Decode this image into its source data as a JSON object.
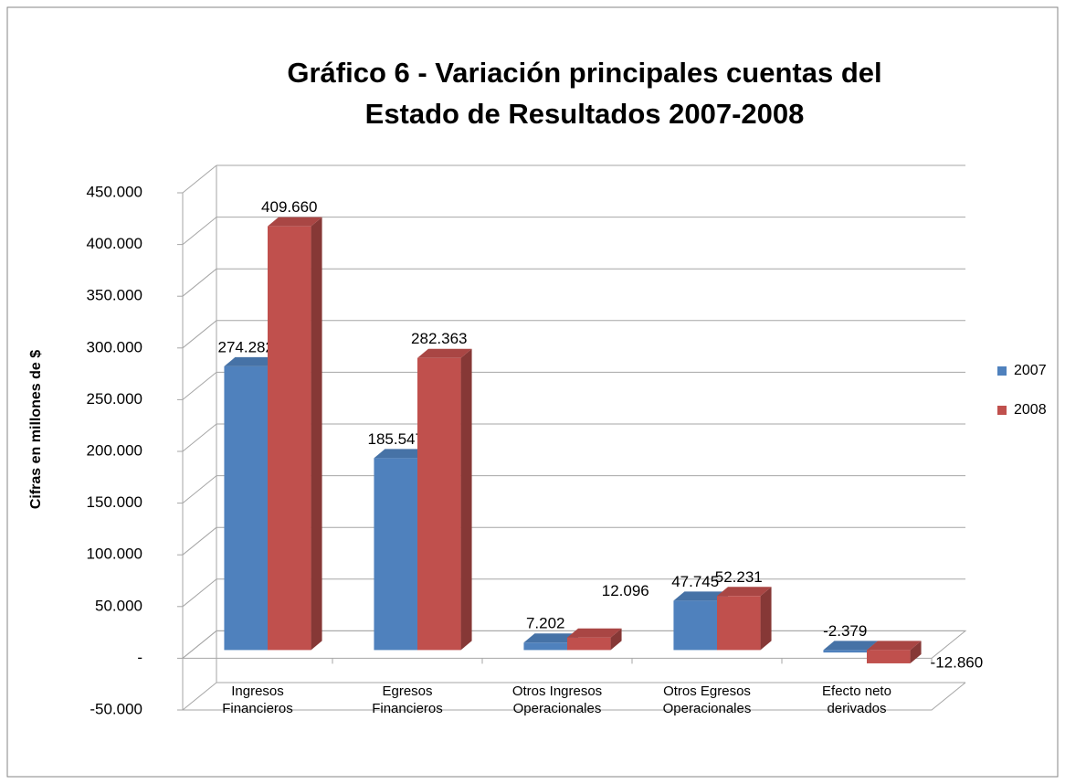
{
  "chart_data": {
    "type": "bar3d",
    "title": [
      "Gráfico 6 - Variación principales cuentas del",
      "Estado de Resultados 2007-2008"
    ],
    "y_label": "Cifras en millones de $",
    "categories": [
      [
        "Ingresos",
        "Financieros"
      ],
      [
        "Egresos",
        "Financieros"
      ],
      [
        "Otros Ingresos",
        "Operacionales"
      ],
      [
        "Otros Egresos",
        "Operacionales"
      ],
      [
        "Efecto neto",
        "derivados"
      ]
    ],
    "series": [
      {
        "name": "2007",
        "color": "#4f81bd",
        "values": [
          274282,
          185547,
          7202,
          47745,
          -2379
        ],
        "value_labels": [
          "274.282",
          "185.547",
          "7.202",
          "47.745",
          "-2.379"
        ]
      },
      {
        "name": "2008",
        "color": "#c0504d",
        "values": [
          409660,
          282363,
          12096,
          52231,
          -12860
        ],
        "value_labels": [
          "409.660",
          "282.363",
          "12.096",
          "52.231",
          "-12.860"
        ]
      }
    ],
    "ylim": [
      -50000,
      450000
    ],
    "yticks": [
      {
        "value": -50000,
        "label": "-50.000"
      },
      {
        "value": 0,
        "label": "-"
      },
      {
        "value": 50000,
        "label": "50.000"
      },
      {
        "value": 100000,
        "label": "100.000"
      },
      {
        "value": 150000,
        "label": "150.000"
      },
      {
        "value": 200000,
        "label": "200.000"
      },
      {
        "value": 250000,
        "label": "250.000"
      },
      {
        "value": 300000,
        "label": "300.000"
      },
      {
        "value": 350000,
        "label": "350.000"
      },
      {
        "value": 400000,
        "label": "400.000"
      },
      {
        "value": 450000,
        "label": "450.000"
      }
    ],
    "grid": true,
    "legend": "right"
  }
}
